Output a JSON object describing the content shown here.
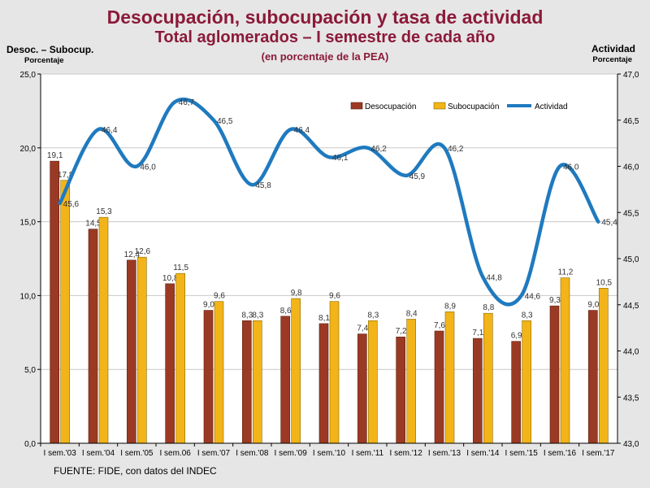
{
  "header": {
    "title": "Desocupación, subocupación y tasa de actividad",
    "subtitle": "Total aglomerados – I semestre de cada año",
    "note": "(en porcentaje de la PEA)"
  },
  "left_axis": {
    "title": "Desoc. – Subocup.",
    "subtitle": "Porcentaje"
  },
  "right_axis": {
    "title": "Actividad",
    "subtitle": "Porcentaje"
  },
  "source": "FUENTE: FIDE, con datos del INDEC",
  "colors": {
    "desocupacion": "#9b3a24",
    "subocupacion": "#f2b418",
    "actividad": "#1f7abf",
    "background": "#e6e6e6"
  },
  "chart_data": {
    "type": "bar",
    "categories": [
      "I sem.'03",
      "I sem.'04",
      "I sem.'05",
      "I sem.06",
      "I sem.'07",
      "I sem.'08",
      "I sem.'09",
      "I sem.'10",
      "I sem.'11",
      "I sem.'12",
      "I sem.'13",
      "I sem.'14",
      "I sem.'15",
      "I sem.'16",
      "I sem.'17"
    ],
    "series": [
      {
        "name": "Desocupación",
        "axis": "left",
        "type": "bar",
        "values": [
          19.1,
          14.5,
          12.4,
          10.8,
          9.0,
          8.3,
          8.6,
          8.1,
          7.4,
          7.2,
          7.6,
          7.1,
          6.9,
          9.3,
          9.0
        ],
        "labels": [
          "19,1",
          "14,5",
          "12,4",
          "10,8",
          "9,0",
          "8,3",
          "8,6",
          "8,1",
          "7,4",
          "7,2",
          "7,6",
          "7,1",
          "6,9",
          "9,3",
          "9,0"
        ]
      },
      {
        "name": "Subocupación",
        "axis": "left",
        "type": "bar",
        "values": [
          17.8,
          15.3,
          12.6,
          11.5,
          9.6,
          8.3,
          9.8,
          9.6,
          8.3,
          8.4,
          8.9,
          8.8,
          8.3,
          11.2,
          10.5
        ],
        "labels": [
          "17,8",
          "15,3",
          "12,6",
          "11,5",
          "9,6",
          "8,3",
          "9,8",
          "9,6",
          "8,3",
          "8,4",
          "8,9",
          "8,8",
          "8,3",
          "11,2",
          "10,5"
        ]
      },
      {
        "name": "Actividad",
        "axis": "right",
        "type": "line",
        "values": [
          45.6,
          46.4,
          46.0,
          46.7,
          46.5,
          45.8,
          46.4,
          46.1,
          46.2,
          45.9,
          46.2,
          44.8,
          44.6,
          46.0,
          45.4
        ],
        "labels": [
          "45,6",
          "46,4",
          "46,0",
          "46,7",
          "46,5",
          "45,8",
          "46,4",
          "46,1",
          "46,2",
          "45,9",
          "46,2",
          "44,8",
          "44,6",
          "46,0",
          "45,4"
        ]
      }
    ],
    "ylim": [
      0,
      25
    ],
    "yticks": [
      0,
      5,
      10,
      15,
      20,
      25
    ],
    "ytick_labels": [
      "0,0",
      "5,0",
      "10,0",
      "15,0",
      "20,0",
      "25,0"
    ],
    "y2lim": [
      43.0,
      47.0
    ],
    "y2ticks": [
      43.0,
      43.5,
      44.0,
      44.5,
      45.0,
      45.5,
      46.0,
      46.5,
      47.0
    ],
    "y2tick_labels": [
      "43,0",
      "43,5",
      "44,0",
      "44,5",
      "45,0",
      "45,5",
      "46,0",
      "46,5",
      "47,0"
    ],
    "grid": true,
    "legend": {
      "position": "top-right",
      "entries": [
        "Desocupación",
        "Subocupación",
        "Actividad"
      ]
    }
  }
}
